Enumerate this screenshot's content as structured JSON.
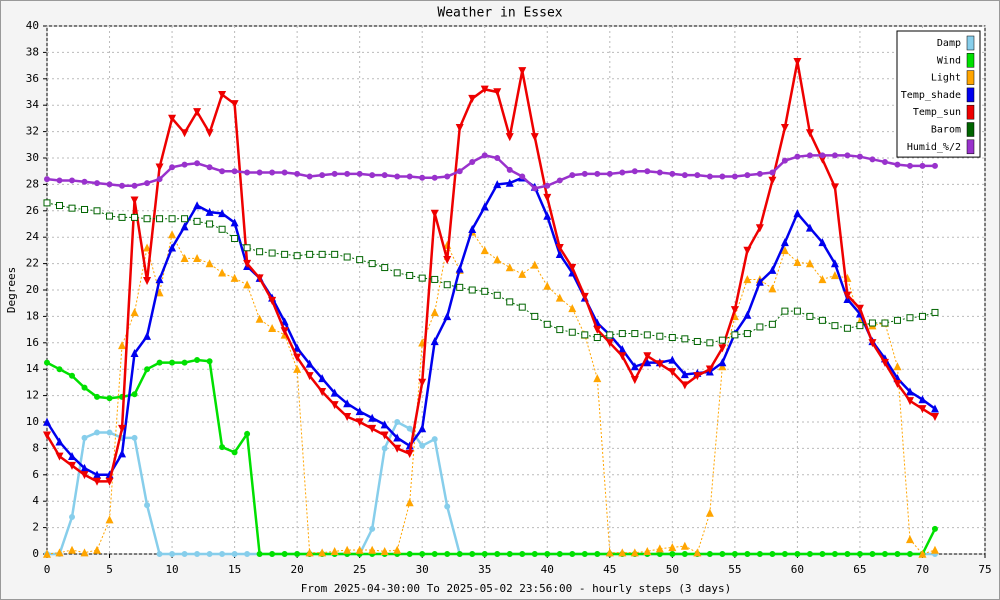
{
  "chart_data": {
    "type": "line",
    "title": "Weather in Essex",
    "xlabel": "From 2025-04-30:00 To 2025-05-02 23:56:00 - hourly steps (3 days)",
    "ylabel": "Degrees",
    "x": [
      0,
      1,
      2,
      3,
      4,
      5,
      6,
      7,
      8,
      9,
      10,
      11,
      12,
      13,
      14,
      15,
      16,
      17,
      18,
      19,
      20,
      21,
      22,
      23,
      24,
      25,
      26,
      27,
      28,
      29,
      30,
      31,
      32,
      33,
      34,
      35,
      36,
      37,
      38,
      39,
      40,
      41,
      42,
      43,
      44,
      45,
      46,
      47,
      48,
      49,
      50,
      51,
      52,
      53,
      54,
      55,
      56,
      57,
      58,
      59,
      60,
      61,
      62,
      63,
      64,
      65,
      66,
      67,
      68,
      69,
      70,
      71
    ],
    "xlim": [
      0,
      75
    ],
    "xticks": [
      0,
      5,
      10,
      15,
      20,
      25,
      30,
      35,
      40,
      45,
      50,
      55,
      60,
      65,
      70,
      75
    ],
    "ylim": [
      0,
      40
    ],
    "yticks": [
      0,
      2,
      4,
      6,
      8,
      10,
      12,
      14,
      16,
      18,
      20,
      22,
      24,
      26,
      28,
      30,
      32,
      34,
      36,
      38,
      40
    ],
    "grid": true,
    "legend": "upper right",
    "series": [
      {
        "name": "Damp",
        "color": "#87ceeb",
        "dash": false,
        "marker": "circle",
        "values": [
          0,
          0,
          2.8,
          8.8,
          9.2,
          9.2,
          8.8,
          8.8,
          3.7,
          0,
          0,
          0,
          0,
          0,
          0,
          0,
          0,
          0,
          0,
          0,
          0,
          0,
          0,
          0,
          0,
          0,
          1.9,
          8,
          10,
          9.5,
          8.2,
          8.7,
          3.6,
          0,
          0,
          0,
          0,
          0,
          0,
          0,
          0,
          0,
          0,
          0,
          0,
          0,
          0,
          0,
          0,
          0,
          0,
          0,
          0,
          0,
          0,
          0,
          0,
          0,
          0,
          0,
          0,
          0,
          0,
          0,
          0,
          0,
          0,
          0,
          0,
          0,
          0,
          0
        ]
      },
      {
        "name": "Wind",
        "color": "#00e000",
        "dash": false,
        "marker": "circle",
        "values": [
          14.5,
          14,
          13.5,
          12.6,
          11.9,
          11.8,
          11.9,
          12.1,
          14,
          14.5,
          14.5,
          14.5,
          14.7,
          14.6,
          8.1,
          7.7,
          9.1,
          0,
          0,
          0,
          0,
          0,
          0,
          0,
          0,
          0,
          0,
          0,
          0,
          0,
          0,
          0,
          0,
          0,
          0,
          0,
          0,
          0,
          0,
          0,
          0,
          0,
          0,
          0,
          0,
          0,
          0,
          0,
          0,
          0,
          0,
          0,
          0,
          0,
          0,
          0,
          0,
          0,
          0,
          0,
          0,
          0,
          0,
          0,
          0,
          0,
          0,
          0,
          0,
          0,
          0,
          1.9
        ]
      },
      {
        "name": "Light",
        "color": "#ffa500",
        "dash": true,
        "marker": "triangle",
        "values": [
          0,
          0.1,
          0.3,
          0.1,
          0.3,
          2.6,
          15.8,
          18.3,
          23.2,
          19.8,
          24.2,
          22.4,
          22.4,
          22,
          21.3,
          20.9,
          20.4,
          17.8,
          17.1,
          16.6,
          14,
          0.1,
          0.1,
          0.2,
          0.3,
          0.3,
          0.3,
          0.2,
          0.3,
          3.9,
          16,
          18.3,
          23.4,
          21.5,
          24.4,
          23,
          22.3,
          21.7,
          21.2,
          21.9,
          20.3,
          19.4,
          18.6,
          16.6,
          13.3,
          0.1,
          0.1,
          0.1,
          0.2,
          0.4,
          0.5,
          0.6,
          0.1,
          3.1,
          14.2,
          18,
          20.8,
          20.8,
          20.1,
          23,
          22.1,
          22,
          20.8,
          21.1,
          20.9,
          17.6,
          17.3,
          17.5,
          14.2,
          1.1,
          0,
          0.3
        ]
      },
      {
        "name": "Temp_shade",
        "color": "#0000ee",
        "dash": false,
        "marker": "triangle",
        "values": [
          10,
          8.5,
          7.4,
          6.5,
          6,
          6,
          7.6,
          15.2,
          16.5,
          20.8,
          23.2,
          24.8,
          26.4,
          25.9,
          25.8,
          25.1,
          21.8,
          20.9,
          19.4,
          17.6,
          15.6,
          14.4,
          13.3,
          12.2,
          11.4,
          10.8,
          10.3,
          9.8,
          8.8,
          8.2,
          9.5,
          16.1,
          18,
          21.6,
          24.6,
          26.3,
          28,
          28.1,
          28.5,
          27.8,
          25.6,
          22.7,
          21.3,
          19.4,
          17.5,
          16.6,
          15.5,
          14.2,
          14.5,
          14.5,
          14.7,
          13.6,
          13.7,
          13.8,
          14.5,
          16.7,
          18.1,
          20.6,
          21.5,
          23.6,
          25.8,
          24.7,
          23.6,
          22,
          19.3,
          18.2,
          16.1,
          14.8,
          13.3,
          12.3,
          11.7,
          11
        ]
      },
      {
        "name": "Temp_sun",
        "color": "#ee0000",
        "dash": false,
        "marker": "triangle-down",
        "values": [
          9,
          7.4,
          6.7,
          6,
          5.5,
          5.5,
          9.5,
          26.8,
          20.7,
          29.3,
          33,
          31.9,
          33.5,
          31.9,
          34.8,
          34.1,
          22,
          20.9,
          19.2,
          16.9,
          14.9,
          13.5,
          12.3,
          11.3,
          10.4,
          10,
          9.5,
          9,
          8,
          7.6,
          13,
          25.8,
          22.3,
          32.3,
          34.5,
          35.2,
          35,
          31.6,
          36.6,
          31.6,
          27,
          23.2,
          21.7,
          19.5,
          17,
          16,
          15,
          13.2,
          15,
          14.4,
          13.8,
          12.8,
          13.5,
          14,
          15.6,
          18.5,
          23,
          24.7,
          28.3,
          32.3,
          37.3,
          31.9,
          29.9,
          27.8,
          19.6,
          18.6,
          16,
          14.5,
          12.9,
          11.6,
          11,
          10.4
        ]
      },
      {
        "name": "Barom",
        "color": "#006400",
        "dash": true,
        "marker": "square",
        "values": [
          26.6,
          26.4,
          26.2,
          26.1,
          26,
          25.6,
          25.5,
          25.5,
          25.4,
          25.4,
          25.4,
          25.4,
          25.2,
          25,
          24.6,
          23.9,
          23.2,
          22.9,
          22.8,
          22.7,
          22.6,
          22.7,
          22.7,
          22.7,
          22.5,
          22.3,
          22,
          21.7,
          21.3,
          21.1,
          20.9,
          20.8,
          20.4,
          20.2,
          20,
          19.9,
          19.6,
          19.1,
          18.7,
          18,
          17.4,
          17,
          16.8,
          16.6,
          16.4,
          16.6,
          16.7,
          16.7,
          16.6,
          16.5,
          16.4,
          16.3,
          16.1,
          16,
          16.2,
          16.6,
          16.7,
          17.2,
          17.4,
          18.4,
          18.4,
          18,
          17.7,
          17.3,
          17.1,
          17.3,
          17.5,
          17.5,
          17.7,
          17.9,
          18,
          18.3
        ]
      },
      {
        "name": "Humid_%/2",
        "color": "#9932cc",
        "dash": false,
        "marker": "circle",
        "values": [
          28.4,
          28.3,
          28.3,
          28.2,
          28.1,
          28,
          27.9,
          27.9,
          28.1,
          28.4,
          29.3,
          29.5,
          29.6,
          29.3,
          29,
          29,
          28.9,
          28.9,
          28.9,
          28.9,
          28.8,
          28.6,
          28.7,
          28.8,
          28.8,
          28.8,
          28.7,
          28.7,
          28.6,
          28.6,
          28.5,
          28.5,
          28.6,
          29,
          29.7,
          30.2,
          30,
          29.1,
          28.6,
          27.7,
          27.9,
          28.3,
          28.7,
          28.8,
          28.8,
          28.8,
          28.9,
          29,
          29,
          28.9,
          28.8,
          28.7,
          28.7,
          28.6,
          28.6,
          28.6,
          28.7,
          28.8,
          28.9,
          29.8,
          30.1,
          30.2,
          30.2,
          30.2,
          30.2,
          30.1,
          29.9,
          29.7,
          29.5,
          29.4,
          29.4,
          29.4
        ]
      }
    ]
  }
}
